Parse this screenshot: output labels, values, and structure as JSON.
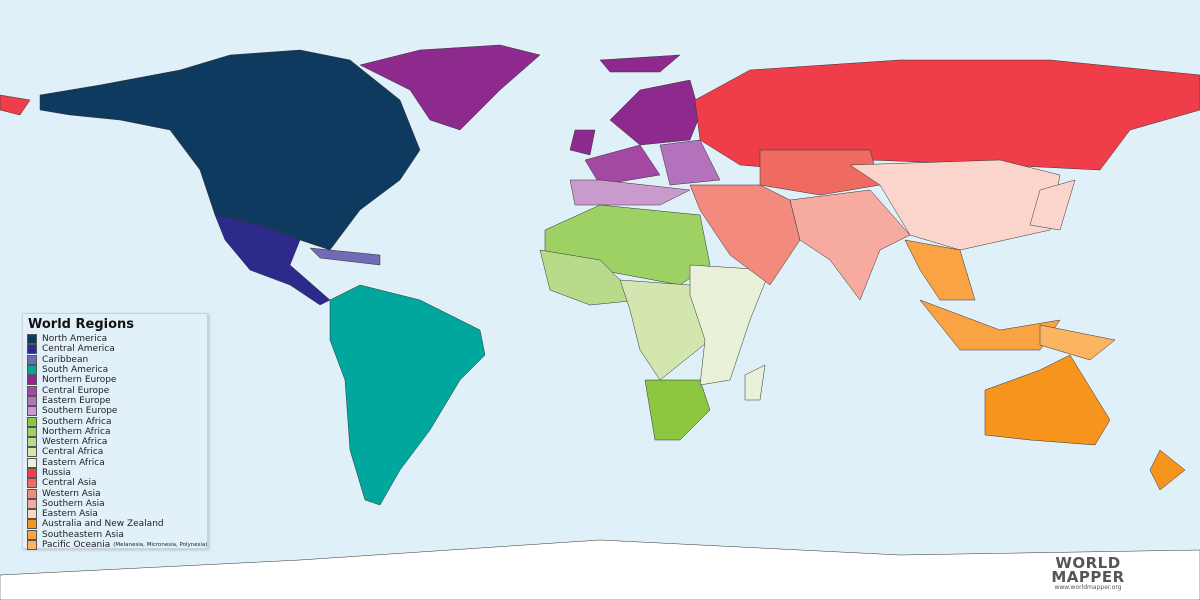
{
  "legend": {
    "title": "World Regions",
    "items": [
      {
        "id": "north-america",
        "label": "North America",
        "color": "#0f3a5f"
      },
      {
        "id": "central-america",
        "label": "Central America",
        "color": "#2e2a8c"
      },
      {
        "id": "caribbean",
        "label": "Caribbean",
        "color": "#6f6bb5"
      },
      {
        "id": "south-america",
        "label": "South America",
        "color": "#00a79d"
      },
      {
        "id": "northern-europe",
        "label": "Northern Europe",
        "color": "#8e2a8e"
      },
      {
        "id": "central-europe",
        "label": "Central Europe",
        "color": "#a349a4"
      },
      {
        "id": "eastern-europe",
        "label": "Eastern Europe",
        "color": "#b472bd"
      },
      {
        "id": "southern-europe",
        "label": "Southern Europe",
        "color": "#c99bcd"
      },
      {
        "id": "southern-africa",
        "label": "Southern Africa",
        "color": "#8dc63f"
      },
      {
        "id": "northern-africa",
        "label": "Northern Africa",
        "color": "#9ed163"
      },
      {
        "id": "western-africa",
        "label": "Western Africa",
        "color": "#b7db8a"
      },
      {
        "id": "central-africa",
        "label": "Central Africa",
        "color": "#d3e6b0"
      },
      {
        "id": "eastern-africa",
        "label": "Eastern Africa",
        "color": "#e9f1d9"
      },
      {
        "id": "russia",
        "label": "Russia",
        "color": "#ef3e4a"
      },
      {
        "id": "central-asia",
        "label": "Central Asia",
        "color": "#ef6b61"
      },
      {
        "id": "western-asia",
        "label": "Western Asia",
        "color": "#f28b7e"
      },
      {
        "id": "southern-asia",
        "label": "Southern Asia",
        "color": "#f6aaa0"
      },
      {
        "id": "eastern-asia",
        "label": "Eastern Asia",
        "color": "#fbd5cc"
      },
      {
        "id": "australia-nz",
        "label": "Australia and New Zealand",
        "color": "#f7941d"
      },
      {
        "id": "southeastern-asia",
        "label": "Southeastern Asia",
        "color": "#f9a342"
      },
      {
        "id": "pacific-oceania",
        "label": "Pacific Oceania",
        "note": "(Melanesia, Micronesia, Polynesia)",
        "color": "#fbb561"
      }
    ]
  },
  "map": {
    "ocean_color": "#e0f0f8",
    "antarctica_color": "#ffffff"
  },
  "logo": {
    "line1": "WORLD",
    "line2": "MAPPER",
    "url": "www.worldmapper.org"
  }
}
